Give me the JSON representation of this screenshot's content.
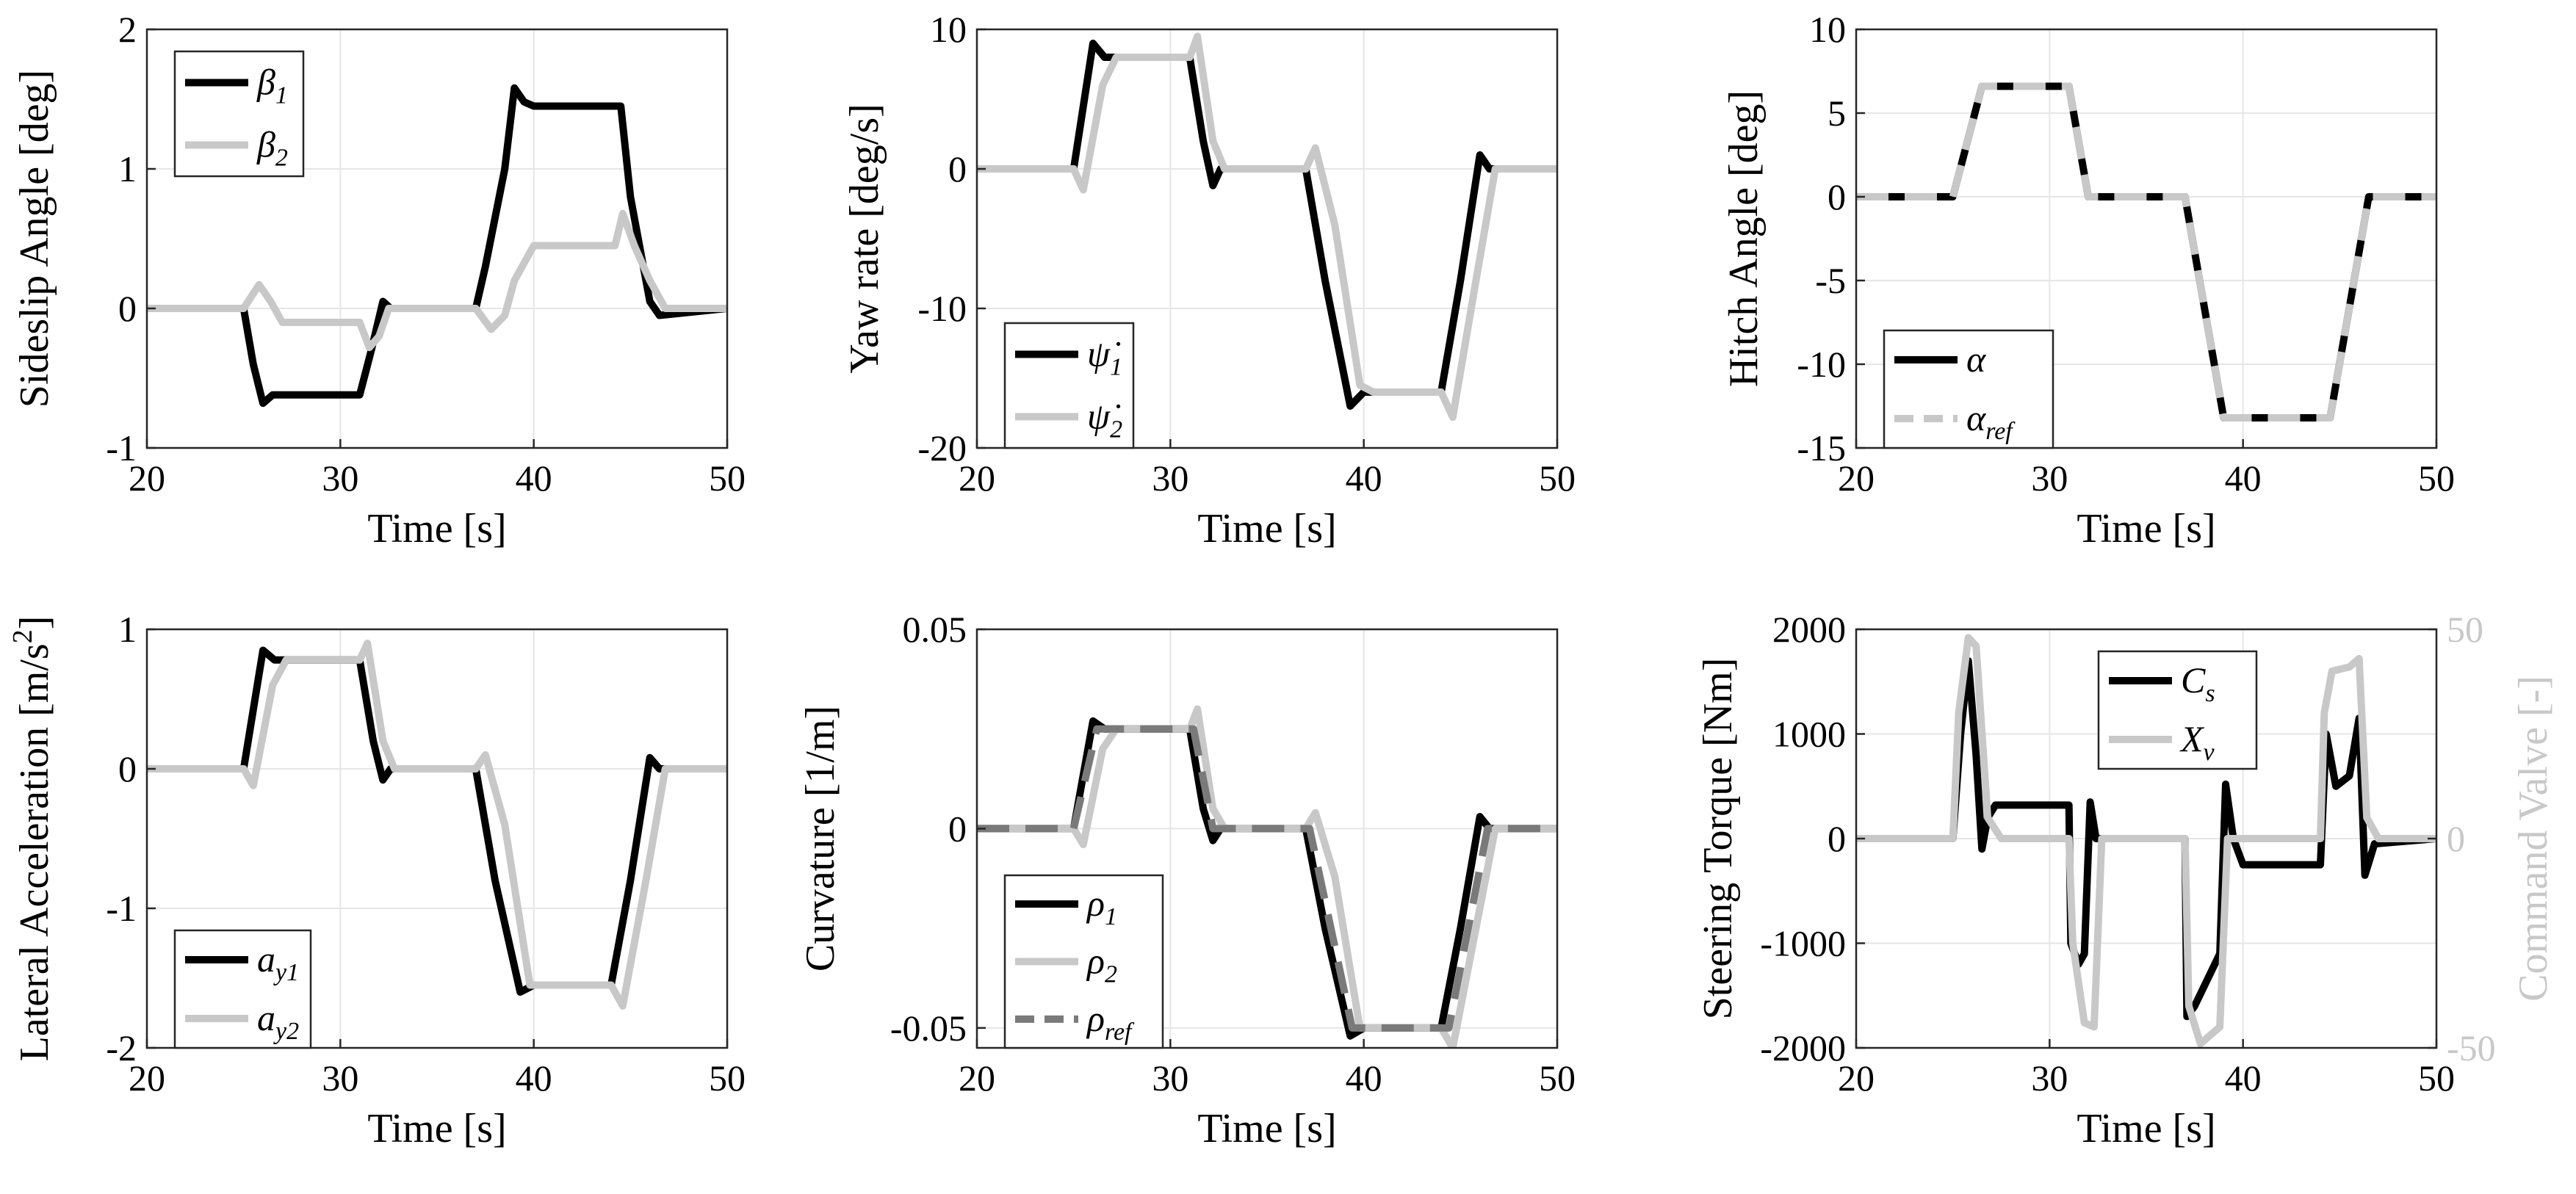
{
  "figure": {
    "background": "#ffffff",
    "grid_color": "#e6e6e6",
    "axes_color": "#262626"
  },
  "chart_data": [
    {
      "id": "sideslip",
      "type": "line",
      "xlabel": "Time [s]",
      "ylabel": "Sideslip Angle [deg]",
      "xlim": [
        20,
        50
      ],
      "ylim": [
        -1,
        2
      ],
      "xticks": [
        20,
        30,
        40,
        50
      ],
      "yticks": [
        -1,
        0,
        1,
        2
      ],
      "xtick_labels": [
        "20",
        "30",
        "40",
        "50"
      ],
      "ytick_labels": [
        "-1",
        "0",
        "1",
        "2"
      ],
      "grid": true,
      "legend_position": "top-left",
      "series": [
        {
          "name": "β1",
          "legend_main": "β",
          "legend_sub": "1",
          "color": "#000000",
          "dash": "",
          "x": [
            20,
            25,
            25.5,
            26,
            26.5,
            31,
            31.6,
            32.2,
            32.6,
            37,
            37.5,
            38.5,
            39,
            39.5,
            40,
            44.5,
            45,
            46,
            46.5,
            50
          ],
          "y": [
            0,
            0,
            -0.4,
            -0.68,
            -0.62,
            -0.62,
            -0.3,
            0.05,
            0,
            0,
            0.3,
            1.0,
            1.58,
            1.48,
            1.45,
            1.45,
            0.8,
            0.05,
            -0.05,
            0
          ]
        },
        {
          "name": "β2",
          "legend_main": "β",
          "legend_sub": "2",
          "color": "#c8c8c8",
          "dash": "",
          "x": [
            20,
            25,
            25.8,
            26.4,
            27,
            31,
            31.5,
            32,
            32.5,
            37,
            37.8,
            38.5,
            39,
            40,
            44.2,
            44.6,
            45.2,
            46,
            46.8,
            50
          ],
          "y": [
            0,
            0,
            0.17,
            0.05,
            -0.1,
            -0.1,
            -0.28,
            -0.2,
            0,
            0,
            -0.15,
            -0.05,
            0.2,
            0.45,
            0.45,
            0.68,
            0.45,
            0.2,
            0,
            0
          ]
        }
      ]
    },
    {
      "id": "yaw",
      "type": "line",
      "xlabel": "Time [s]",
      "ylabel": "Yaw rate [deg/s]",
      "xlim": [
        20,
        50
      ],
      "ylim": [
        -20,
        10
      ],
      "xticks": [
        20,
        30,
        40,
        50
      ],
      "yticks": [
        -20,
        -10,
        0,
        10
      ],
      "xtick_labels": [
        "20",
        "30",
        "40",
        "50"
      ],
      "ytick_labels": [
        "-20",
        "-10",
        "0",
        "10"
      ],
      "grid": true,
      "legend_position": "bottom-left",
      "series": [
        {
          "name": "ψ̇1",
          "legend_main": "ψ̇",
          "legend_sub": "1",
          "color": "#000000",
          "dash": "",
          "x": [
            20,
            25,
            26,
            26.6,
            31,
            31.7,
            32.2,
            32.6,
            37,
            38,
            39.3,
            40,
            44,
            45,
            46,
            46.5,
            50
          ],
          "y": [
            0,
            0,
            9,
            8,
            8,
            2,
            -1.2,
            0,
            0,
            -8,
            -17,
            -16,
            -16,
            -8,
            1,
            0,
            0
          ]
        },
        {
          "name": "ψ̇2",
          "legend_main": "ψ̇",
          "legend_sub": "2",
          "color": "#c8c8c8",
          "dash": "",
          "x": [
            20,
            25,
            25.5,
            26.5,
            27.2,
            31,
            31.4,
            32.2,
            32.8,
            37,
            37.5,
            38.5,
            39.8,
            40.5,
            44,
            44.6,
            45.8,
            46.8,
            50
          ],
          "y": [
            0,
            0,
            -1.5,
            6,
            8,
            8,
            9.5,
            2,
            0,
            0,
            1.5,
            -4,
            -15.5,
            -16,
            -16,
            -17.8,
            -8,
            0,
            0
          ]
        }
      ]
    },
    {
      "id": "hitch",
      "type": "line",
      "xlabel": "Time [s]",
      "ylabel": "Hitch Angle [deg]",
      "xlim": [
        20,
        50
      ],
      "ylim": [
        -15,
        10
      ],
      "xticks": [
        20,
        30,
        40,
        50
      ],
      "yticks": [
        -15,
        -10,
        -5,
        0,
        5,
        10
      ],
      "xtick_labels": [
        "20",
        "30",
        "40",
        "50"
      ],
      "ytick_labels": [
        "-15",
        "-10",
        "-5",
        "0",
        "5",
        "10"
      ],
      "grid": true,
      "legend_position": "bottom-left",
      "series": [
        {
          "name": "α",
          "legend_main": "α",
          "legend_sub": "",
          "color": "#000000",
          "dash": "",
          "x": [
            20,
            25,
            26.5,
            31,
            32,
            37,
            39,
            44.5,
            46.5,
            50
          ],
          "y": [
            0,
            0,
            6.6,
            6.6,
            0,
            0,
            -13.2,
            -13.2,
            0,
            0
          ]
        },
        {
          "name": "αref",
          "legend_main": "α",
          "legend_sub": "ref",
          "color": "#c8c8c8",
          "dash": "44 22",
          "x": [
            20,
            25,
            26.5,
            31,
            32,
            37,
            39,
            44.5,
            46.5,
            50
          ],
          "y": [
            0,
            0,
            6.6,
            6.6,
            0,
            0,
            -13.2,
            -13.2,
            0,
            0
          ]
        }
      ]
    },
    {
      "id": "latacc",
      "type": "line",
      "xlabel": "Time [s]",
      "ylabel": "Lateral Acceleration [m/s²]",
      "ylabel_main": "Lateral Acceleration [m/s",
      "ylabel_sup": "2",
      "ylabel_tail": "]",
      "xlim": [
        20,
        50
      ],
      "ylim": [
        -2,
        1
      ],
      "xticks": [
        20,
        30,
        40,
        50
      ],
      "yticks": [
        -2,
        -1,
        0,
        1
      ],
      "xtick_labels": [
        "20",
        "30",
        "40",
        "50"
      ],
      "ytick_labels": [
        "-2",
        "-1",
        "0",
        "1"
      ],
      "grid": true,
      "legend_position": "bottom-left",
      "series": [
        {
          "name": "ay1",
          "legend_main": "a",
          "legend_sub": "y1",
          "color": "#000000",
          "dash": "",
          "x": [
            20,
            25,
            26,
            26.6,
            31,
            31.7,
            32.2,
            32.6,
            37,
            38,
            39.3,
            40,
            44,
            45,
            46,
            46.5,
            50
          ],
          "y": [
            0,
            0,
            0.85,
            0.78,
            0.78,
            0.2,
            -0.08,
            0,
            0,
            -0.8,
            -1.6,
            -1.55,
            -1.55,
            -0.8,
            0.08,
            0,
            0
          ]
        },
        {
          "name": "ay2",
          "legend_main": "a",
          "legend_sub": "y2",
          "color": "#c8c8c8",
          "dash": "",
          "x": [
            20,
            25,
            25.5,
            26.5,
            27.2,
            31,
            31.4,
            32.2,
            32.8,
            37,
            37.5,
            38.5,
            39.8,
            40.5,
            44,
            44.6,
            45.8,
            46.8,
            50
          ],
          "y": [
            0,
            0,
            -0.12,
            0.6,
            0.78,
            0.78,
            0.9,
            0.2,
            0,
            0,
            0.1,
            -0.4,
            -1.55,
            -1.55,
            -1.55,
            -1.7,
            -0.8,
            0,
            0
          ]
        }
      ]
    },
    {
      "id": "curvature",
      "type": "line",
      "xlabel": "Time [s]",
      "ylabel": "Curvature [1/m]",
      "xlim": [
        20,
        50
      ],
      "ylim": [
        -0.055,
        0.05
      ],
      "xticks": [
        20,
        30,
        40,
        50
      ],
      "yticks": [
        -0.05,
        0,
        0.05
      ],
      "xtick_labels": [
        "20",
        "30",
        "40",
        "50"
      ],
      "ytick_labels": [
        "-0.05",
        "0",
        "0.05"
      ],
      "grid": true,
      "legend_position": "bottom-left",
      "series": [
        {
          "name": "ρ1",
          "legend_main": "ρ",
          "legend_sub": "1",
          "color": "#000000",
          "dash": "",
          "x": [
            20,
            25,
            26,
            26.6,
            31,
            31.7,
            32.2,
            32.6,
            37,
            38,
            39.3,
            40,
            44,
            45,
            46,
            46.5,
            50
          ],
          "y": [
            0,
            0,
            0.027,
            0.025,
            0.025,
            0.005,
            -0.003,
            0,
            0,
            -0.025,
            -0.052,
            -0.05,
            -0.05,
            -0.025,
            0.003,
            0,
            0
          ]
        },
        {
          "name": "ρ2",
          "legend_main": "ρ",
          "legend_sub": "2",
          "color": "#c8c8c8",
          "dash": "",
          "x": [
            20,
            25,
            25.5,
            26.5,
            27.2,
            31,
            31.4,
            32.2,
            32.8,
            37,
            37.5,
            38.5,
            39.8,
            40.5,
            44,
            44.6,
            45.8,
            46.8,
            50
          ],
          "y": [
            0,
            0,
            -0.004,
            0.02,
            0.025,
            0.025,
            0.03,
            0.005,
            0,
            0,
            0.004,
            -0.012,
            -0.05,
            -0.05,
            -0.05,
            -0.055,
            -0.025,
            0,
            0
          ]
        },
        {
          "name": "ρref",
          "legend_main": "ρ",
          "legend_sub": "ref",
          "color": "#7a7a7a",
          "dash": "44 22",
          "x": [
            20,
            25,
            26.2,
            31.2,
            32.2,
            37.2,
            39.4,
            44.4,
            46.4,
            50
          ],
          "y": [
            0,
            0,
            0.025,
            0.025,
            0,
            0,
            -0.05,
            -0.05,
            0,
            0
          ]
        }
      ]
    },
    {
      "id": "steering",
      "type": "line",
      "xlabel": "Time [s]",
      "ylabel": "Steering Torque [Nm]",
      "ylabel_right": "Command Valve [-]",
      "ylabel_right_color": "#c8c8c8",
      "xlim": [
        20,
        50
      ],
      "ylim": [
        -2000,
        2000
      ],
      "ylim_right": [
        -50,
        50
      ],
      "xticks": [
        20,
        30,
        40,
        50
      ],
      "yticks": [
        -2000,
        -1000,
        0,
        1000,
        2000
      ],
      "xtick_labels": [
        "20",
        "30",
        "40",
        "50"
      ],
      "ytick_labels": [
        "-2000",
        "-1000",
        "0",
        "1000",
        "2000"
      ],
      "yticks_right": [
        -50,
        0,
        50
      ],
      "ytick_labels_right": [
        "-50",
        "0",
        "50"
      ],
      "grid": true,
      "legend_position": "top-middle",
      "series": [
        {
          "name": "Cs",
          "legend_main": "C",
          "legend_sub": "s",
          "color": "#000000",
          "dash": "",
          "axis": "left",
          "x": [
            20,
            25,
            25.4,
            25.8,
            26.2,
            26.5,
            26.8,
            27.2,
            31,
            31.1,
            31.5,
            31.8,
            32.1,
            32.4,
            32.8,
            37,
            37.1,
            37.5,
            38.8,
            39.1,
            39.5,
            40,
            44,
            44.3,
            44.8,
            45.5,
            46,
            46.3,
            46.8,
            50
          ],
          "y": [
            0,
            0,
            1000,
            1700,
            800,
            -100,
            200,
            320,
            320,
            -1000,
            -1200,
            -1100,
            350,
            0,
            0,
            0,
            -1700,
            -1600,
            -1100,
            520,
            0,
            -250,
            -250,
            1000,
            500,
            600,
            1150,
            -350,
            -50,
            0
          ]
        },
        {
          "name": "Xv",
          "legend_main": "X",
          "legend_sub": "v",
          "color": "#c8c8c8",
          "dash": "",
          "axis": "right",
          "x": [
            20,
            25,
            25.3,
            25.8,
            26.2,
            26.8,
            27.5,
            31,
            31.2,
            31.8,
            32.3,
            32.7,
            37,
            37.2,
            37.8,
            38.8,
            39.2,
            39.8,
            44,
            44.2,
            44.6,
            45.5,
            46,
            46.4,
            47,
            50
          ],
          "y": [
            0,
            0,
            30,
            48,
            46,
            5,
            0,
            0,
            -25,
            -44,
            -45,
            0,
            0,
            -40,
            -49,
            -45,
            0,
            0,
            0,
            30,
            40,
            41,
            43,
            5,
            0,
            0
          ]
        }
      ]
    }
  ]
}
